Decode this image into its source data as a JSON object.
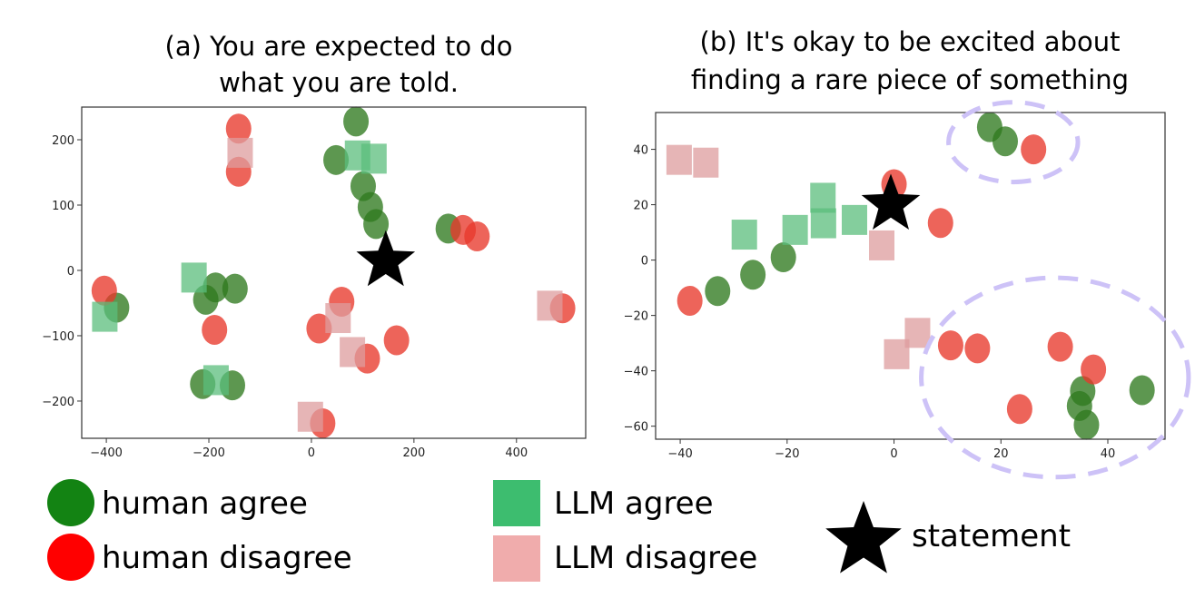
{
  "colors": {
    "human_agree": "#2f7a1f",
    "human_disagree": "#e8392c",
    "llm_agree": "#5bbd7c",
    "llm_disagree": "#dd9c9d",
    "statement": "#000000",
    "annotation": "#cdc2f7",
    "legend_human_agree": "#138313",
    "legend_human_disagree": "#ff0000",
    "legend_llm_agree": "#3dbd6f",
    "legend_llm_disagree": "#f0acac"
  },
  "legend": {
    "placement": "bottom",
    "items": [
      {
        "key": "human_agree",
        "label": "human agree",
        "marker": "circle"
      },
      {
        "key": "human_disagree",
        "label": "human disagree",
        "marker": "circle"
      },
      {
        "key": "llm_agree",
        "label": "LLM agree",
        "marker": "square"
      },
      {
        "key": "llm_disagree",
        "label": "LLM disagree",
        "marker": "square"
      },
      {
        "key": "statement",
        "label": "statement",
        "marker": "star"
      }
    ]
  },
  "chart_data": [
    {
      "type": "scatter",
      "title_lines": [
        "(a) You are expected to do",
        "what you are told."
      ],
      "xlabel": "",
      "ylabel": "",
      "xlim": [
        -448,
        535
      ],
      "ylim": [
        -257,
        250
      ],
      "xticks": [
        -400,
        -200,
        0,
        200,
        400
      ],
      "yticks": [
        -200,
        -100,
        0,
        100,
        200
      ],
      "grid": false,
      "series": [
        {
          "key": "human_agree",
          "marker": "circle",
          "points": [
            [
              87,
              228
            ],
            [
              48,
              169
            ],
            [
              101,
              129
            ],
            [
              115,
              97
            ],
            [
              126,
              71
            ],
            [
              267,
              64
            ],
            [
              -187,
              -26
            ],
            [
              -206,
              -45
            ],
            [
              -149,
              -28
            ],
            [
              -380,
              -57
            ],
            [
              -212,
              -174
            ],
            [
              -154,
              -176
            ]
          ]
        },
        {
          "key": "human_disagree",
          "marker": "circle",
          "points": [
            [
              -142,
              217
            ],
            [
              -142,
              151
            ],
            [
              296,
              62
            ],
            [
              323,
              52
            ],
            [
              -404,
              -31
            ],
            [
              -189,
              -91
            ],
            [
              59,
              -48
            ],
            [
              15,
              -89
            ],
            [
              166,
              -107
            ],
            [
              109,
              -135
            ],
            [
              490,
              -58
            ],
            [
              22,
              -234
            ]
          ]
        },
        {
          "key": "llm_agree",
          "marker": "square",
          "points": [
            [
              90,
              176
            ],
            [
              122,
              171
            ],
            [
              -229,
              -11
            ],
            [
              -403,
              -71
            ],
            [
              -186,
              -168
            ]
          ]
        },
        {
          "key": "llm_disagree",
          "marker": "square",
          "points": [
            [
              -139,
              180
            ],
            [
              52,
              -73
            ],
            [
              80,
              -125
            ],
            [
              465,
              -54
            ],
            [
              -2,
              -224
            ]
          ]
        },
        {
          "key": "statement",
          "marker": "star",
          "points": [
            [
              145,
              17
            ]
          ]
        }
      ],
      "annotations": []
    },
    {
      "type": "scatter",
      "title_lines": [
        "(b) It's okay to be excited about",
        "finding a rare piece of something"
      ],
      "xlabel": "",
      "ylabel": "",
      "xlim": [
        -44.6,
        50.7
      ],
      "ylim": [
        -64.7,
        53.3
      ],
      "xticks": [
        -40,
        -20,
        0,
        20,
        40
      ],
      "yticks": [
        -60,
        -40,
        -20,
        0,
        20,
        40
      ],
      "grid": false,
      "series": [
        {
          "key": "human_agree",
          "marker": "circle",
          "points": [
            [
              17.9,
              48
            ],
            [
              20.8,
              42.9
            ],
            [
              -20.7,
              1
            ],
            [
              -26.4,
              -5.3
            ],
            [
              -33,
              -11.2
            ],
            [
              35.3,
              -47.3
            ],
            [
              34.7,
              -52.7
            ],
            [
              36,
              -59.5
            ],
            [
              46.4,
              -47
            ]
          ]
        },
        {
          "key": "human_disagree",
          "marker": "circle",
          "points": [
            [
              26.1,
              40
            ],
            [
              0,
              27.4
            ],
            [
              8.7,
              13.4
            ],
            [
              -38.2,
              -14.7
            ],
            [
              10.6,
              -30.8
            ],
            [
              15.6,
              -31.9
            ],
            [
              31.1,
              -31.3
            ],
            [
              37.3,
              -39.5
            ],
            [
              23.5,
              -53.8
            ]
          ]
        },
        {
          "key": "llm_agree",
          "marker": "square",
          "points": [
            [
              -13.3,
              22.5
            ],
            [
              -13.2,
              13.3
            ],
            [
              -7.4,
              14.5
            ],
            [
              -18.5,
              10.9
            ],
            [
              -28,
              9.2
            ]
          ]
        },
        {
          "key": "llm_disagree",
          "marker": "square",
          "points": [
            [
              -40.2,
              36.2
            ],
            [
              -35.2,
              35.2
            ],
            [
              -2.3,
              5.3
            ],
            [
              4.4,
              -26.3
            ],
            [
              0.5,
              -34
            ]
          ]
        },
        {
          "key": "statement",
          "marker": "star",
          "points": [
            [
              -0.6,
              20.7
            ]
          ]
        }
      ],
      "annotations": [
        {
          "shape": "dashed-ellipse",
          "center": [
            22.3,
            42.6
          ],
          "radius": [
            12.1,
            14.4
          ]
        },
        {
          "shape": "dashed-ellipse",
          "center": [
            30.1,
            -42.4
          ],
          "radius": [
            25,
            36
          ]
        }
      ]
    }
  ]
}
